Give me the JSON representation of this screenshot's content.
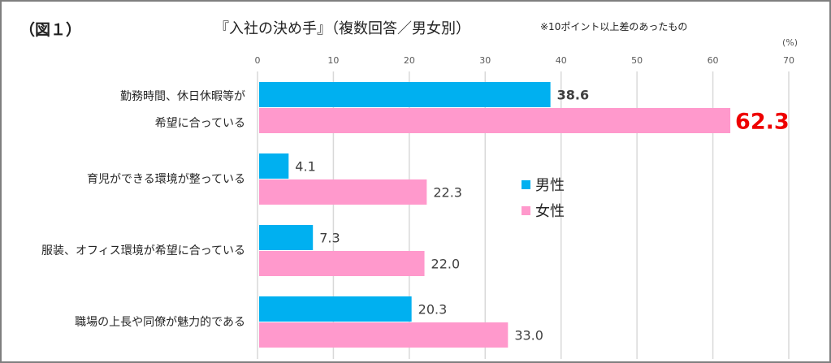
{
  "figure_label": "（図１）",
  "chart_data": {
    "type": "bar",
    "orientation": "horizontal",
    "title": "『入社の決め手』（複数回答／男女別）",
    "subtitle": "※10ポイント以上差のあったもの",
    "unit": "(%)",
    "categories": [
      [
        "勤務時間、休日休暇等が",
        "希望に合っている"
      ],
      [
        "育児ができる環境が整っている"
      ],
      [
        "服装、オフィス環境が希望に合っている"
      ],
      [
        "職場の上長や同僚が魅力的である"
      ]
    ],
    "series": [
      {
        "name": "男性",
        "color": "#00b0f0",
        "values": [
          38.6,
          4.1,
          7.3,
          20.3
        ]
      },
      {
        "name": "女性",
        "color": "#ff99cc",
        "values": [
          62.3,
          22.3,
          22.0,
          33.0
        ]
      }
    ],
    "highlight": {
      "series": 1,
      "index": 0,
      "color": "#ee0000"
    },
    "xlim": [
      0,
      70
    ],
    "xticks": [
      0,
      10,
      20,
      30,
      40,
      50,
      60,
      70
    ],
    "grid": true,
    "legend_position": "center"
  }
}
